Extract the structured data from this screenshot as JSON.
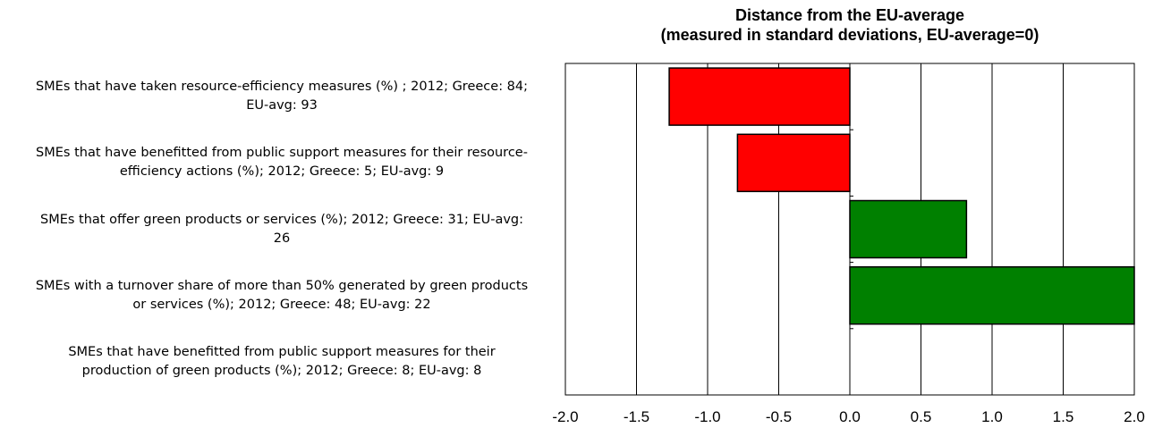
{
  "chart_data": {
    "type": "bar",
    "orientation": "horizontal",
    "title": "Distance from the EU-average",
    "subtitle": "(measured in standard deviations, EU-average=0)",
    "categories": [
      "SMEs that have taken resource-efficiency measures (%) ; 2012; Greece: 84; EU-avg: 93",
      "SMEs that have benefitted from public support measures for their resource-efficiency actions (%); 2012; Greece: 5; EU-avg: 9",
      "SMEs that offer green products or services (%); 2012; Greece: 31; EU-avg: 26",
      "SMEs with a turnover share of more than 50% generated by green products or services (%); 2012; Greece: 48; EU-avg: 22",
      "SMEs that have benefitted from public support measures for their production of green products (%); 2012; Greece: 8; EU-avg: 8"
    ],
    "category_lines": [
      [
        "SMEs that have taken resource-efficiency measures (%) ; 2012; Greece: 84;",
        "EU-avg: 93"
      ],
      [
        "SMEs that have benefitted from public support measures for their resource-",
        "efficiency actions (%); 2012; Greece: 5; EU-avg: 9"
      ],
      [
        "SMEs that offer green products or services (%); 2012; Greece: 31; EU-avg:",
        "26"
      ],
      [
        "SMEs with a turnover share of more than 50% generated by green products",
        "or services (%); 2012; Greece: 48; EU-avg: 22"
      ],
      [
        "SMEs that have benefitted from public support measures for their",
        "production of green products (%); 2012; Greece: 8; EU-avg: 8"
      ]
    ],
    "values": [
      -1.27,
      -0.79,
      0.82,
      2.0,
      0
    ],
    "xlim": [
      -2.0,
      2.0
    ],
    "xticks": [
      "-2.0",
      "-1.5",
      "-1.0",
      "-0.5",
      "0.0",
      "0.5",
      "1.0",
      "1.5",
      "2.0"
    ],
    "grid": true,
    "colors": {
      "negative": "#ff0000",
      "positive": "#008000",
      "outline": "#000000",
      "grid": "#000000"
    }
  }
}
